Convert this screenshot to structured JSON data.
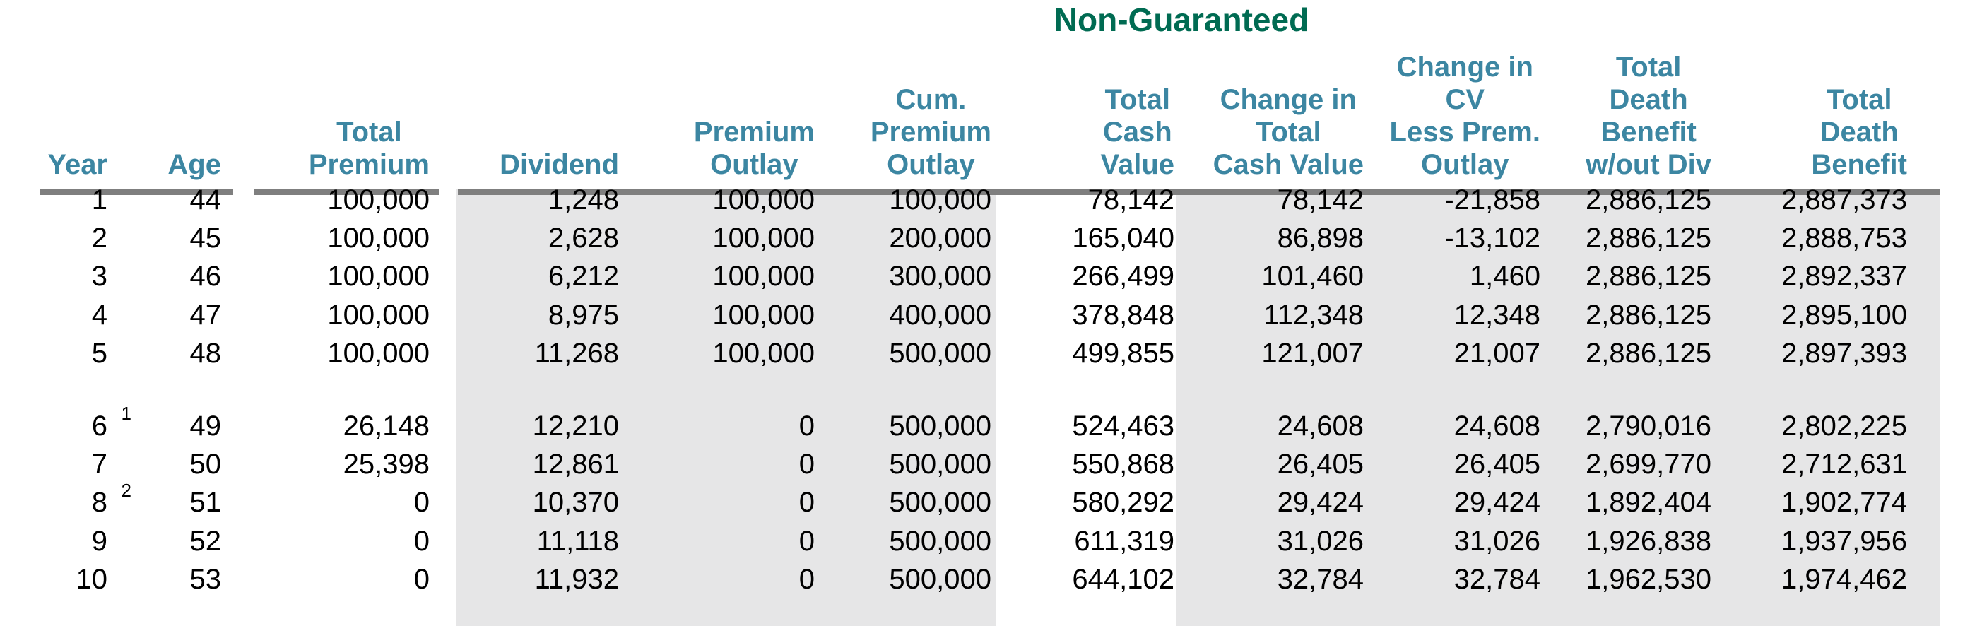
{
  "title": {
    "text": "Non-Guaranteed"
  },
  "colors": {
    "title_green": "#006B52",
    "header_teal": "#3C86A2",
    "rule_gray": "#7F7F7F",
    "band_gray": "#E6E6E7",
    "text_black": "#000000",
    "background": "#FFFFFF"
  },
  "table": {
    "spacer_after": 5,
    "columns": [
      {
        "id": "year",
        "label": "Year"
      },
      {
        "id": "age",
        "label": "Age"
      },
      {
        "id": "total-premium",
        "label": "Total\nPremium"
      },
      {
        "id": "dividend",
        "label": "Dividend"
      },
      {
        "id": "premium-outlay",
        "label": "Premium\nOutlay"
      },
      {
        "id": "cum-premium-outlay",
        "label": "Cum.\nPremium\nOutlay"
      },
      {
        "id": "total-cash-value",
        "label": "Total\nCash\nValue"
      },
      {
        "id": "change-in-total-cash-value",
        "label": "Change in\nTotal\nCash Value"
      },
      {
        "id": "change-in-cv-less-prem-outlay",
        "label": "Change in\nCV\nLess Prem.\nOutlay"
      },
      {
        "id": "total-death-benefit-wout-div",
        "label": "Total\nDeath\nBenefit\nw/out Div"
      },
      {
        "id": "total-death-benefit",
        "label": "Total\nDeath\nBenefit"
      }
    ],
    "rows": [
      {
        "sup": "",
        "cells": [
          "1",
          "44",
          "100,000",
          "1,248",
          "100,000",
          "100,000",
          "78,142",
          "78,142",
          "-21,858",
          "2,886,125",
          "2,887,373"
        ]
      },
      {
        "sup": "",
        "cells": [
          "2",
          "45",
          "100,000",
          "2,628",
          "100,000",
          "200,000",
          "165,040",
          "86,898",
          "-13,102",
          "2,886,125",
          "2,888,753"
        ]
      },
      {
        "sup": "",
        "cells": [
          "3",
          "46",
          "100,000",
          "6,212",
          "100,000",
          "300,000",
          "266,499",
          "101,460",
          "1,460",
          "2,886,125",
          "2,892,337"
        ]
      },
      {
        "sup": "",
        "cells": [
          "4",
          "47",
          "100,000",
          "8,975",
          "100,000",
          "400,000",
          "378,848",
          "112,348",
          "12,348",
          "2,886,125",
          "2,895,100"
        ]
      },
      {
        "sup": "",
        "cells": [
          "5",
          "48",
          "100,000",
          "11,268",
          "100,000",
          "500,000",
          "499,855",
          "121,007",
          "21,007",
          "2,886,125",
          "2,897,393"
        ]
      },
      {
        "sup": "1",
        "cells": [
          "6",
          "49",
          "26,148",
          "12,210",
          "0",
          "500,000",
          "524,463",
          "24,608",
          "24,608",
          "2,790,016",
          "2,802,225"
        ]
      },
      {
        "sup": "",
        "cells": [
          "7",
          "50",
          "25,398",
          "12,861",
          "0",
          "500,000",
          "550,868",
          "26,405",
          "26,405",
          "2,699,770",
          "2,712,631"
        ]
      },
      {
        "sup": "2",
        "cells": [
          "8",
          "51",
          "0",
          "10,370",
          "0",
          "500,000",
          "580,292",
          "29,424",
          "29,424",
          "1,892,404",
          "1,902,774"
        ]
      },
      {
        "sup": "",
        "cells": [
          "9",
          "52",
          "0",
          "11,118",
          "0",
          "500,000",
          "611,319",
          "31,026",
          "31,026",
          "1,926,838",
          "1,937,956"
        ]
      },
      {
        "sup": "",
        "cells": [
          "10",
          "53",
          "0",
          "11,932",
          "0",
          "500,000",
          "644,102",
          "32,784",
          "32,784",
          "1,962,530",
          "1,974,462"
        ]
      }
    ]
  }
}
